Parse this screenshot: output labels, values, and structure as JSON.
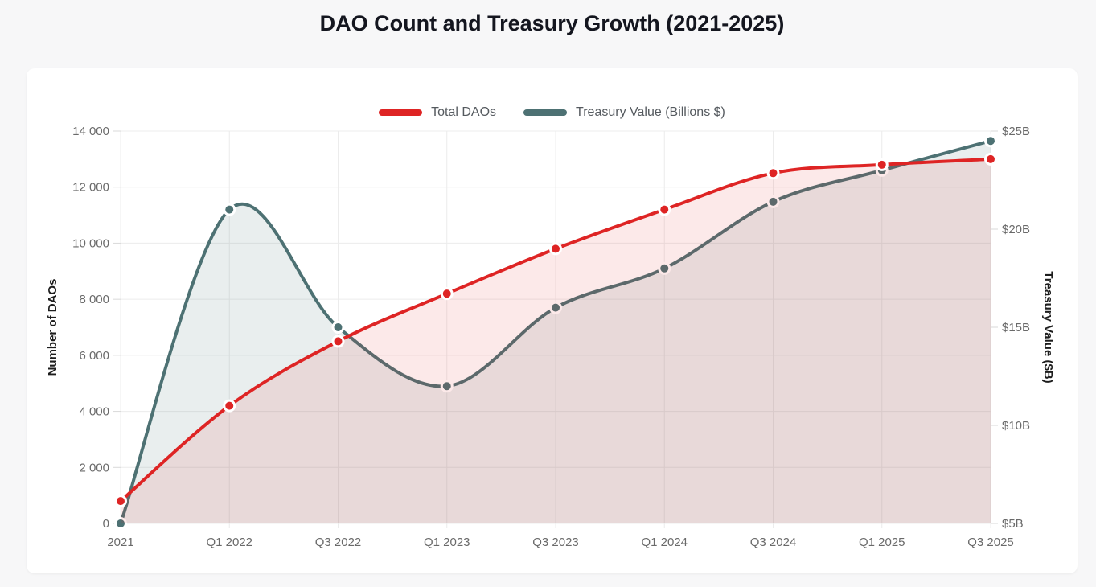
{
  "page": {
    "background_color": "#f7f7f8",
    "card_background": "#ffffff"
  },
  "chart_data": {
    "type": "line",
    "title": "DAO Count and Treasury Growth (2021-2025)",
    "grid": true,
    "legend_position": "top",
    "categories": [
      "2021",
      "Q1 2022",
      "Q3 2022",
      "Q1 2023",
      "Q3 2023",
      "Q1 2024",
      "Q3 2024",
      "Q1 2025",
      "Q3 2025"
    ],
    "series": [
      {
        "name": "Total DAOs",
        "axis": "left",
        "color": "#de2424",
        "fill_color": "rgba(222,36,36,0.10)",
        "values": [
          800,
          4200,
          6500,
          8200,
          9800,
          11200,
          12500,
          12800,
          13000
        ]
      },
      {
        "name": "Treasury Value (Billions $)",
        "axis": "right",
        "color": "#4d7173",
        "fill_color": "rgba(77,113,115,0.12)",
        "values": [
          5,
          21,
          15,
          12,
          16,
          18,
          21.4,
          23,
          24.5
        ]
      }
    ],
    "left_axis": {
      "label": "Number of DAOs",
      "min": 0,
      "max": 14000,
      "tick_step": 2000,
      "tick_labels": [
        "0",
        "2 000",
        "4 000",
        "6 000",
        "8 000",
        "10 000",
        "12 000",
        "14 000"
      ]
    },
    "right_axis": {
      "label": "Treasury Value ($B)",
      "min": 5,
      "max": 25,
      "tick_step": 5,
      "tick_labels": [
        "$5B",
        "$10B",
        "$15B",
        "$20B",
        "$25B"
      ]
    },
    "style": {
      "grid_color": "#ececec",
      "axis_tick_color": "#d9d9d9",
      "tick_label_color": "#6a6a6a",
      "axis_title_color": "#1d1d1d",
      "point_border_color": "#ffffff",
      "title_color": "#14161f",
      "legend_text_color": "#555a5f"
    }
  }
}
